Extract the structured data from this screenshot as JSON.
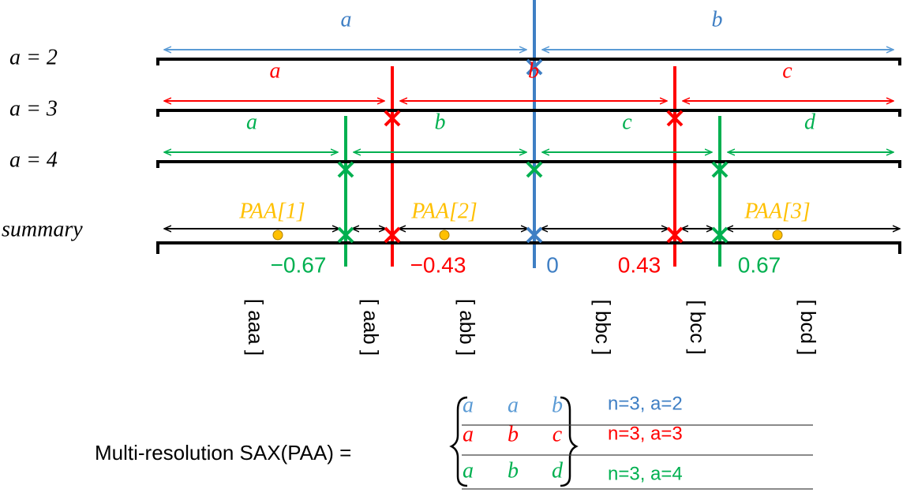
{
  "rows": [
    {
      "label": "a = 2",
      "segments": [
        "a",
        "b"
      ]
    },
    {
      "label": "a = 3",
      "segments": [
        "a",
        "b",
        "c"
      ]
    },
    {
      "label": "a = 4",
      "segments": [
        "a",
        "b",
        "c",
        "d"
      ]
    }
  ],
  "summary": {
    "label": "summary",
    "paa": [
      "PAA[1]",
      "PAA[2]",
      "PAA[3]"
    ]
  },
  "breakpoints": [
    "−0.67",
    "−0.43",
    "0",
    "0.43",
    "0.67"
  ],
  "words": [
    "[ aaa ]",
    "[ aab ]",
    "[ abb ]",
    "[ bbc ]",
    "[ bcc ]",
    "[ bcd ]"
  ],
  "formula": {
    "label": "Multi-resolution SAX(PAA) =",
    "matrix": [
      [
        "a",
        "a",
        "b"
      ],
      [
        "a",
        "b",
        "c"
      ],
      [
        "a",
        "b",
        "d"
      ]
    ],
    "notes": [
      "n=3, a=2",
      "n=3, a=3",
      "n=3, a=4"
    ]
  }
}
